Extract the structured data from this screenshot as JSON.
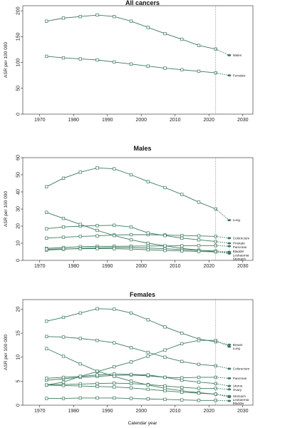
{
  "global": {
    "xlabel": "Calendar year",
    "color": "#3c7a5e",
    "projection_year": 2022
  },
  "chart_data": [
    {
      "type": "line",
      "title": "All cancers",
      "ylabel": "ASR per 100 000",
      "xlim": [
        1965,
        2033
      ],
      "ylim": [
        0,
        210
      ],
      "xticks": [
        1970,
        1980,
        1990,
        2000,
        2010,
        2020,
        2030
      ],
      "yticks": [
        0,
        50,
        100,
        150,
        200
      ],
      "x": [
        1972,
        1977,
        1982,
        1987,
        1992,
        1997,
        2002,
        2007,
        2012,
        2017,
        2022
      ],
      "series": [
        {
          "name": "Males",
          "values": [
            180,
            186,
            189,
            192,
            189,
            180,
            168,
            156,
            145,
            133,
            126
          ],
          "proj": 114
        },
        {
          "name": "Females",
          "values": [
            112,
            109,
            107,
            105,
            101,
            97,
            93,
            89,
            86,
            83,
            80
          ],
          "proj": 75
        }
      ]
    },
    {
      "type": "line",
      "title": "Males",
      "ylabel": "ASR per 100 000",
      "xlim": [
        1965,
        2033
      ],
      "ylim": [
        0,
        60
      ],
      "xticks": [
        1970,
        1980,
        1990,
        2000,
        2010,
        2020,
        2030
      ],
      "yticks": [
        0,
        10,
        20,
        30,
        40,
        50,
        60
      ],
      "x": [
        1972,
        1977,
        1982,
        1987,
        1992,
        1997,
        2002,
        2007,
        2012,
        2017,
        2022
      ],
      "series": [
        {
          "name": "Lung",
          "values": [
            43,
            48,
            51.5,
            54,
            53.5,
            50,
            46,
            42.5,
            38.5,
            34,
            30
          ],
          "proj": 23.5
        },
        {
          "name": "Colorectum",
          "values": [
            13,
            13.5,
            14,
            14.3,
            14.8,
            15,
            15,
            14.8,
            14.5,
            14.3,
            14
          ],
          "proj": 13
        },
        {
          "name": "Prostate",
          "values": [
            18.5,
            19.5,
            20,
            20.3,
            20.5,
            19.5,
            16,
            14.5,
            13,
            12,
            11
          ],
          "proj": 10
        },
        {
          "name": "Pancreas",
          "values": [
            7,
            7.5,
            8,
            8.2,
            8.2,
            8.3,
            8.4,
            8.4,
            8.5,
            8.6,
            8.6
          ],
          "proj": 8.3
        },
        {
          "name": "Stomach",
          "values": [
            28,
            24.5,
            21,
            17.5,
            14.5,
            12,
            10,
            8.5,
            7,
            6,
            5
          ],
          "proj": 4
        },
        {
          "name": "Bladder",
          "values": [
            6,
            6.5,
            7,
            7.3,
            7.5,
            7.5,
            7.2,
            6.8,
            6.3,
            5.8,
            5.5
          ],
          "proj": 5
        },
        {
          "name": "Leukaemia",
          "values": [
            6.5,
            6.7,
            6.8,
            6.9,
            6.8,
            6.6,
            6.2,
            5.8,
            5.5,
            5.2,
            5
          ],
          "proj": 4.5
        }
      ]
    },
    {
      "type": "line",
      "title": "Females",
      "ylabel": "ASR per 100 000",
      "xlim": [
        1965,
        2033
      ],
      "ylim": [
        0,
        22
      ],
      "xticks": [
        1970,
        1980,
        1990,
        2000,
        2010,
        2020,
        2030
      ],
      "yticks": [
        0,
        5,
        10,
        15,
        20
      ],
      "x": [
        1972,
        1977,
        1982,
        1987,
        1992,
        1997,
        2002,
        2007,
        2012,
        2017,
        2022
      ],
      "series": [
        {
          "name": "Breast",
          "values": [
            17.5,
            18.3,
            19.2,
            20.1,
            20,
            19.2,
            17.8,
            16.3,
            15,
            13.8,
            13.2
          ],
          "proj": 12.6
        },
        {
          "name": "Lung",
          "values": [
            4.2,
            4.8,
            6,
            7,
            8,
            9,
            10.2,
            11.5,
            12.8,
            13.5,
            13.5
          ],
          "proj": 12.2
        },
        {
          "name": "Colorectum",
          "values": [
            14.3,
            14.2,
            13.9,
            13.5,
            13,
            12,
            11,
            10,
            9.1,
            8.5,
            8.2
          ],
          "proj": 7.6
        },
        {
          "name": "Pancreas",
          "values": [
            5.2,
            5.5,
            5.8,
            6,
            6.2,
            6.3,
            6.1,
            5.8,
            5.7,
            5.8,
            5.8
          ],
          "proj": 5.6
        },
        {
          "name": "Uterus",
          "values": [
            5.6,
            5.8,
            6,
            6.3,
            6.5,
            6.4,
            6.3,
            5.8,
            5.2,
            4.8,
            4.5
          ],
          "proj": 4
        },
        {
          "name": "Ovary",
          "values": [
            4.2,
            4.3,
            4.4,
            4.5,
            4.6,
            4.5,
            4.3,
            4,
            3.7,
            3.5,
            3.5
          ],
          "proj": 3.3
        },
        {
          "name": "Stomach",
          "values": [
            11.8,
            10.2,
            8.6,
            7.1,
            6,
            5,
            4.2,
            3.5,
            3,
            2.6,
            2.3
          ],
          "proj": 1.9
        },
        {
          "name": "Leukaemia",
          "values": [
            4.2,
            4.1,
            4,
            3.9,
            3.8,
            3.6,
            3.3,
            3,
            2.7,
            2.5,
            2.3
          ],
          "proj": 1.7
        },
        {
          "name": "Bladder",
          "values": [
            1.4,
            1.4,
            1.5,
            1.5,
            1.5,
            1.4,
            1.3,
            1.2,
            1.1,
            1,
            1
          ],
          "proj": 0.9
        }
      ]
    }
  ]
}
